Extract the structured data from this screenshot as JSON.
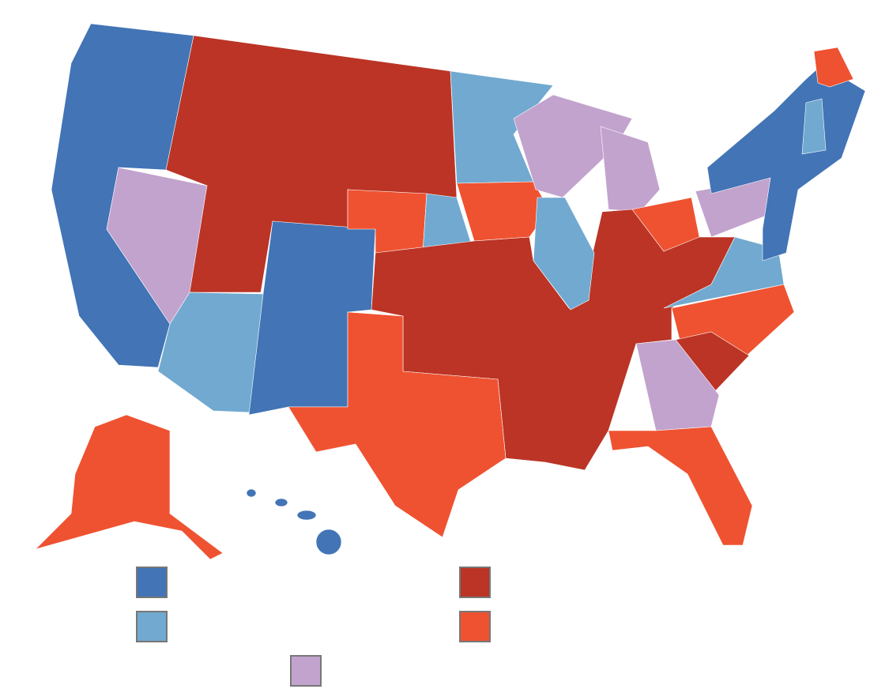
{
  "legend": [
    {
      "color": "#4274b6"
    },
    {
      "color": "#71a9d0"
    },
    {
      "color": "#c2a3cd"
    },
    {
      "color": "#bb3425"
    },
    {
      "color": "#ef5231"
    }
  ]
}
